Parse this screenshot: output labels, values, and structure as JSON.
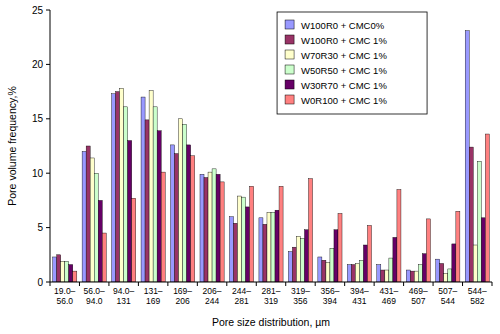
{
  "chart_data": {
    "type": "bar",
    "x_label": "Pore size distribution, µm",
    "y_label": "Pore volume frequency,%",
    "categories": [
      "19.0–56.0",
      "56.0–94.0",
      "94.0–131",
      "131–169",
      "169–206",
      "206–244",
      "244–281",
      "281–319",
      "319–356",
      "356–394",
      "394–431",
      "431–469",
      "469–507",
      "507–544",
      "544–582"
    ],
    "series": [
      {
        "name": "W100R0 + CMC0%",
        "color": "#9999ff",
        "values": [
          2.3,
          12.0,
          17.3,
          17.0,
          12.6,
          9.9,
          6.0,
          5.9,
          2.8,
          2.3,
          1.6,
          1.6,
          1.1,
          2.1,
          23.1
        ]
      },
      {
        "name": "W100R0 + CMC 1%",
        "color": "#993366",
        "values": [
          2.5,
          12.5,
          17.5,
          14.9,
          11.8,
          9.6,
          5.4,
          5.3,
          3.2,
          2.0,
          1.6,
          1.1,
          1.0,
          1.7,
          12.4
        ]
      },
      {
        "name": "W70R30 + CMC 1%",
        "color": "#ffffcc",
        "values": [
          1.9,
          11.4,
          17.8,
          17.6,
          15.0,
          10.1,
          7.9,
          6.4,
          4.2,
          1.8,
          1.7,
          1.1,
          1.0,
          0.8,
          3.4
        ]
      },
      {
        "name": "W50R50 + CMC 1%",
        "color": "#ccffcc",
        "values": [
          1.9,
          10.0,
          16.1,
          16.1,
          14.5,
          10.4,
          7.8,
          6.4,
          4.0,
          3.1,
          2.0,
          2.2,
          1.6,
          1.2,
          11.1
        ]
      },
      {
        "name": "W30R70 + CMC 1%",
        "color": "#660066",
        "values": [
          1.6,
          7.5,
          13.0,
          13.9,
          12.6,
          9.9,
          6.9,
          6.6,
          4.8,
          4.8,
          3.4,
          4.1,
          2.6,
          3.5,
          5.9
        ]
      },
      {
        "name": "W0R100 + CMC 1%",
        "color": "#ff8080",
        "values": [
          1.0,
          4.5,
          7.7,
          10.1,
          11.6,
          9.2,
          8.8,
          8.8,
          9.5,
          6.3,
          5.2,
          8.5,
          5.8,
          6.5,
          13.6
        ]
      }
    ],
    "ylim": [
      0,
      25
    ],
    "yticks": [
      0,
      5,
      10,
      15,
      20,
      25
    ],
    "grid": false,
    "legend": "upper right"
  }
}
